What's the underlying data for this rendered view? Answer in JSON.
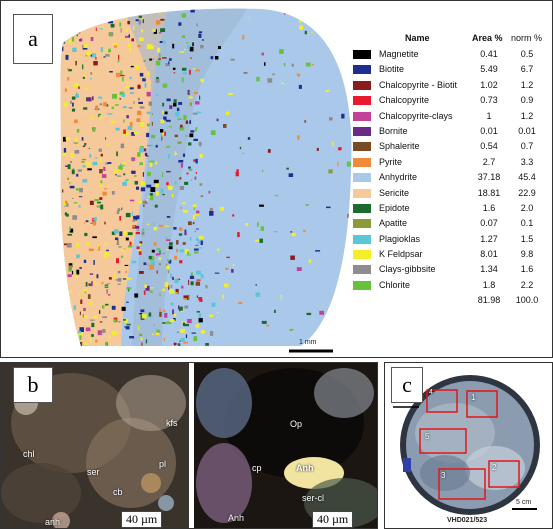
{
  "panel_a": {
    "label": "a",
    "scale_bar_text": "1 mm",
    "legend": {
      "header_name": "Name",
      "header_area": "Area %",
      "header_norm": "norm %",
      "rows": [
        {
          "name": "Magnetite",
          "area": "0.41",
          "norm": "0.5",
          "color": "#000000"
        },
        {
          "name": "Biotite",
          "area": "5.49",
          "norm": "6.7",
          "color": "#1f2f8f"
        },
        {
          "name": "Chalcopyrite - Biotit",
          "area": "1.02",
          "norm": "1.2",
          "color": "#8b1a1a"
        },
        {
          "name": "Chalcopyrite",
          "area": "0.73",
          "norm": "0.9",
          "color": "#e8192c"
        },
        {
          "name": "Chalcopyrite-clays",
          "area": "1",
          "norm": "1.2",
          "color": "#c2419a"
        },
        {
          "name": "Bornite",
          "area": "0.01",
          "norm": "0.01",
          "color": "#6a2a86"
        },
        {
          "name": "Sphalerite",
          "area": "0.54",
          "norm": "0.7",
          "color": "#7b4a24"
        },
        {
          "name": "Pyrite",
          "area": "2.7",
          "norm": "3.3",
          "color": "#ef8a3a"
        },
        {
          "name": "Anhydrite",
          "area": "37.18",
          "norm": "45.4",
          "color": "#a9c8ea"
        },
        {
          "name": "Sericite",
          "area": "18.81",
          "norm": "22.9",
          "color": "#f6c99b"
        },
        {
          "name": "Epidote",
          "area": "1.6",
          "norm": "2.0",
          "color": "#1c6b2e"
        },
        {
          "name": "Apatite",
          "area": "0.07",
          "norm": "0.1",
          "color": "#8c9a3a"
        },
        {
          "name": "Plagioklas",
          "area": "1.27",
          "norm": "1.5",
          "color": "#5bc6d8"
        },
        {
          "name": "K Feldpsar",
          "area": "8.01",
          "norm": "9.8",
          "color": "#f2ee2a"
        },
        {
          "name": "Clays-gibbsite",
          "area": "1.34",
          "norm": "1.6",
          "color": "#8d8d8d"
        },
        {
          "name": "Chlorite",
          "area": "1.8",
          "norm": "2.2",
          "color": "#65c23a"
        }
      ],
      "total_area": "81.98",
      "total_norm": "100.0"
    }
  },
  "panel_b": {
    "label": "b",
    "left": {
      "scale": "40 µm",
      "annotations": [
        "chl",
        "ser",
        "kfs",
        "pl",
        "cb",
        "anh"
      ]
    },
    "right": {
      "scale": "40 µm",
      "annotations": [
        "Op",
        "cp",
        "Anh",
        "ser-cl",
        "Anh"
      ]
    }
  },
  "panel_c": {
    "label": "c",
    "sample_id": "VHD021/523",
    "scale_text": "5 cm",
    "boxes": [
      "1",
      "2",
      "3",
      "4",
      "5"
    ]
  }
}
